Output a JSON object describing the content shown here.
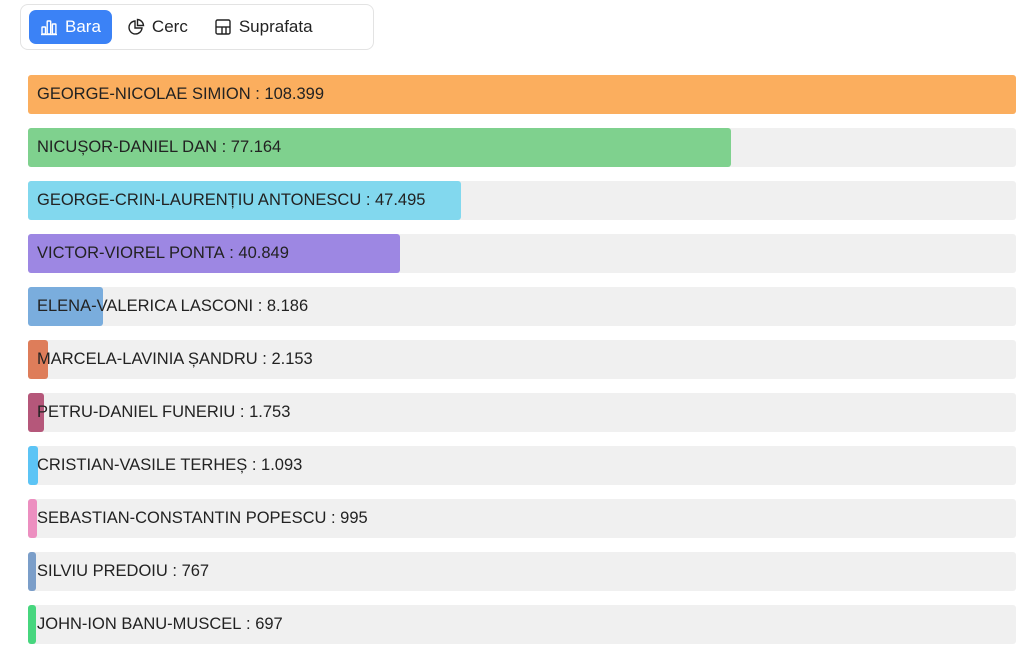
{
  "tabs": [
    {
      "label": "Bara",
      "icon": "bar-chart-icon",
      "active": true
    },
    {
      "label": "Cerc",
      "icon": "pie-chart-icon",
      "active": false
    },
    {
      "label": "Suprafata",
      "icon": "treemap-icon",
      "active": false
    }
  ],
  "chart_data": {
    "type": "bar",
    "orientation": "horizontal",
    "categories": [
      "GEORGE-NICOLAE SIMION",
      "NICUȘOR-DANIEL DAN",
      "GEORGE-CRIN-LAURENȚIU ANTONESCU",
      "VICTOR-VIOREL PONTA",
      "ELENA-VALERICA LASCONI",
      "MARCELA-LAVINIA ȘANDRU",
      "PETRU-DANIEL FUNERIU",
      "CRISTIAN-VASILE TERHEȘ",
      "SEBASTIAN-CONSTANTIN POPESCU",
      "SILVIU PREDOIU",
      "JOHN-ION BANU-MUSCEL"
    ],
    "values": [
      108399,
      77164,
      47495,
      40849,
      8186,
      2153,
      1753,
      1093,
      995,
      767,
      697
    ],
    "value_labels": [
      "108.399",
      "77.164",
      "47.495",
      "40.849",
      "8.186",
      "2.153",
      "1.753",
      "1.093",
      "995",
      "767",
      "697"
    ],
    "colors": [
      "#fbae5e",
      "#7fd18e",
      "#82d8ee",
      "#9d87e3",
      "#7aaddd",
      "#de7d5a",
      "#b5577a",
      "#5cc4f5",
      "#ec8fc0",
      "#7b9ec9",
      "#47d67e"
    ],
    "separator": " : "
  }
}
